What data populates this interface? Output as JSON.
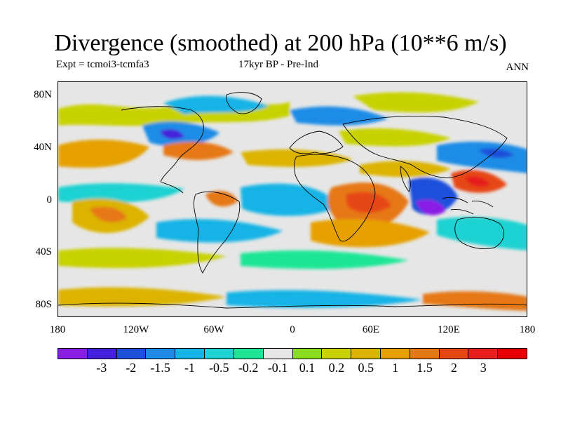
{
  "title": "Divergence (smoothed) at 200 hPa (10**6 m/s)",
  "subtitle_left": "Expt = tcmoi3-tcmfa3",
  "subtitle_center": "17kyr BP - Pre-Ind",
  "subtitle_right": "ANN",
  "y_axis_labels": [
    "80N",
    "40N",
    "0",
    "40S",
    "80S"
  ],
  "x_axis_labels": [
    "180",
    "120W",
    "60W",
    "0",
    "60E",
    "120E",
    "180"
  ],
  "colorbar": {
    "colors": [
      "#8a1ee6",
      "#4420dc",
      "#1e50dc",
      "#1e8ce6",
      "#14b4e6",
      "#1ed2d2",
      "#1ee696",
      "#e6e6e6",
      "#8cdc1e",
      "#c8d200",
      "#dcb400",
      "#e6a000",
      "#e67814",
      "#e64614",
      "#e61e1e",
      "#e60000"
    ],
    "labels": [
      "-3",
      "-2",
      "-1.5",
      "-1",
      "-0.5",
      "-0.2",
      "-0.1",
      "0.1",
      "0.2",
      "0.5",
      "1",
      "1.5",
      "2",
      "3"
    ]
  }
}
